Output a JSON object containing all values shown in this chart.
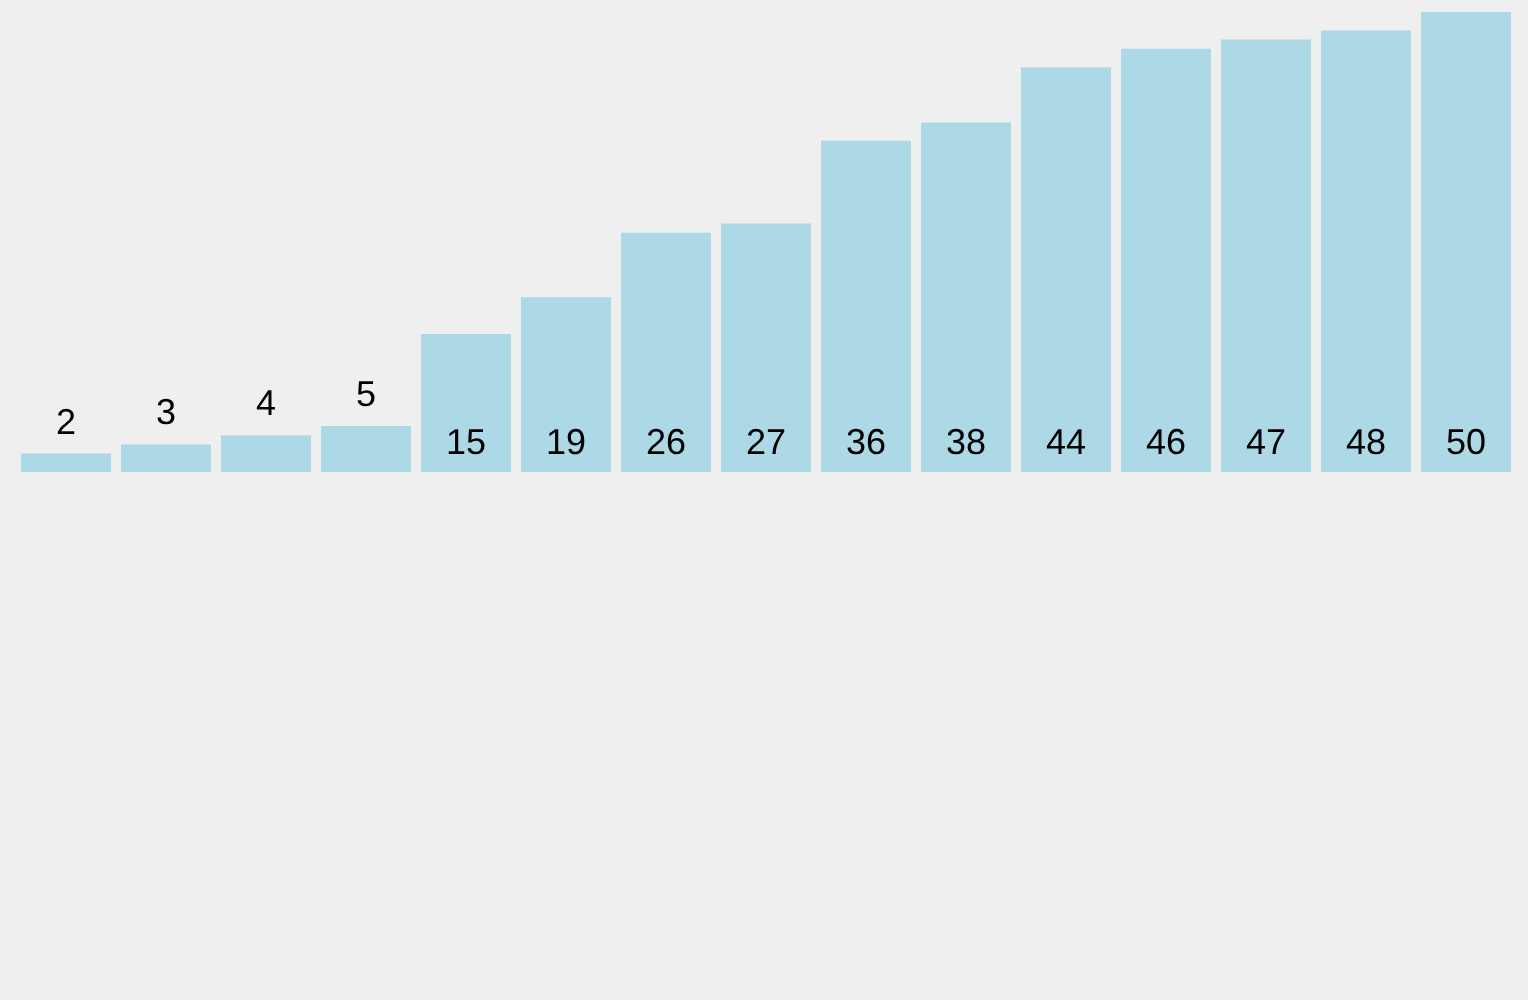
{
  "chart_data": {
    "type": "bar",
    "categories": [
      null,
      null,
      null,
      null,
      null,
      null,
      null,
      null,
      null,
      null,
      null,
      null,
      null,
      null,
      null
    ],
    "values": [
      2,
      3,
      4,
      5,
      15,
      19,
      26,
      27,
      36,
      38,
      44,
      46,
      47,
      48,
      50
    ],
    "color": "#add8e6",
    "data_labels": true,
    "legend": false
  }
}
